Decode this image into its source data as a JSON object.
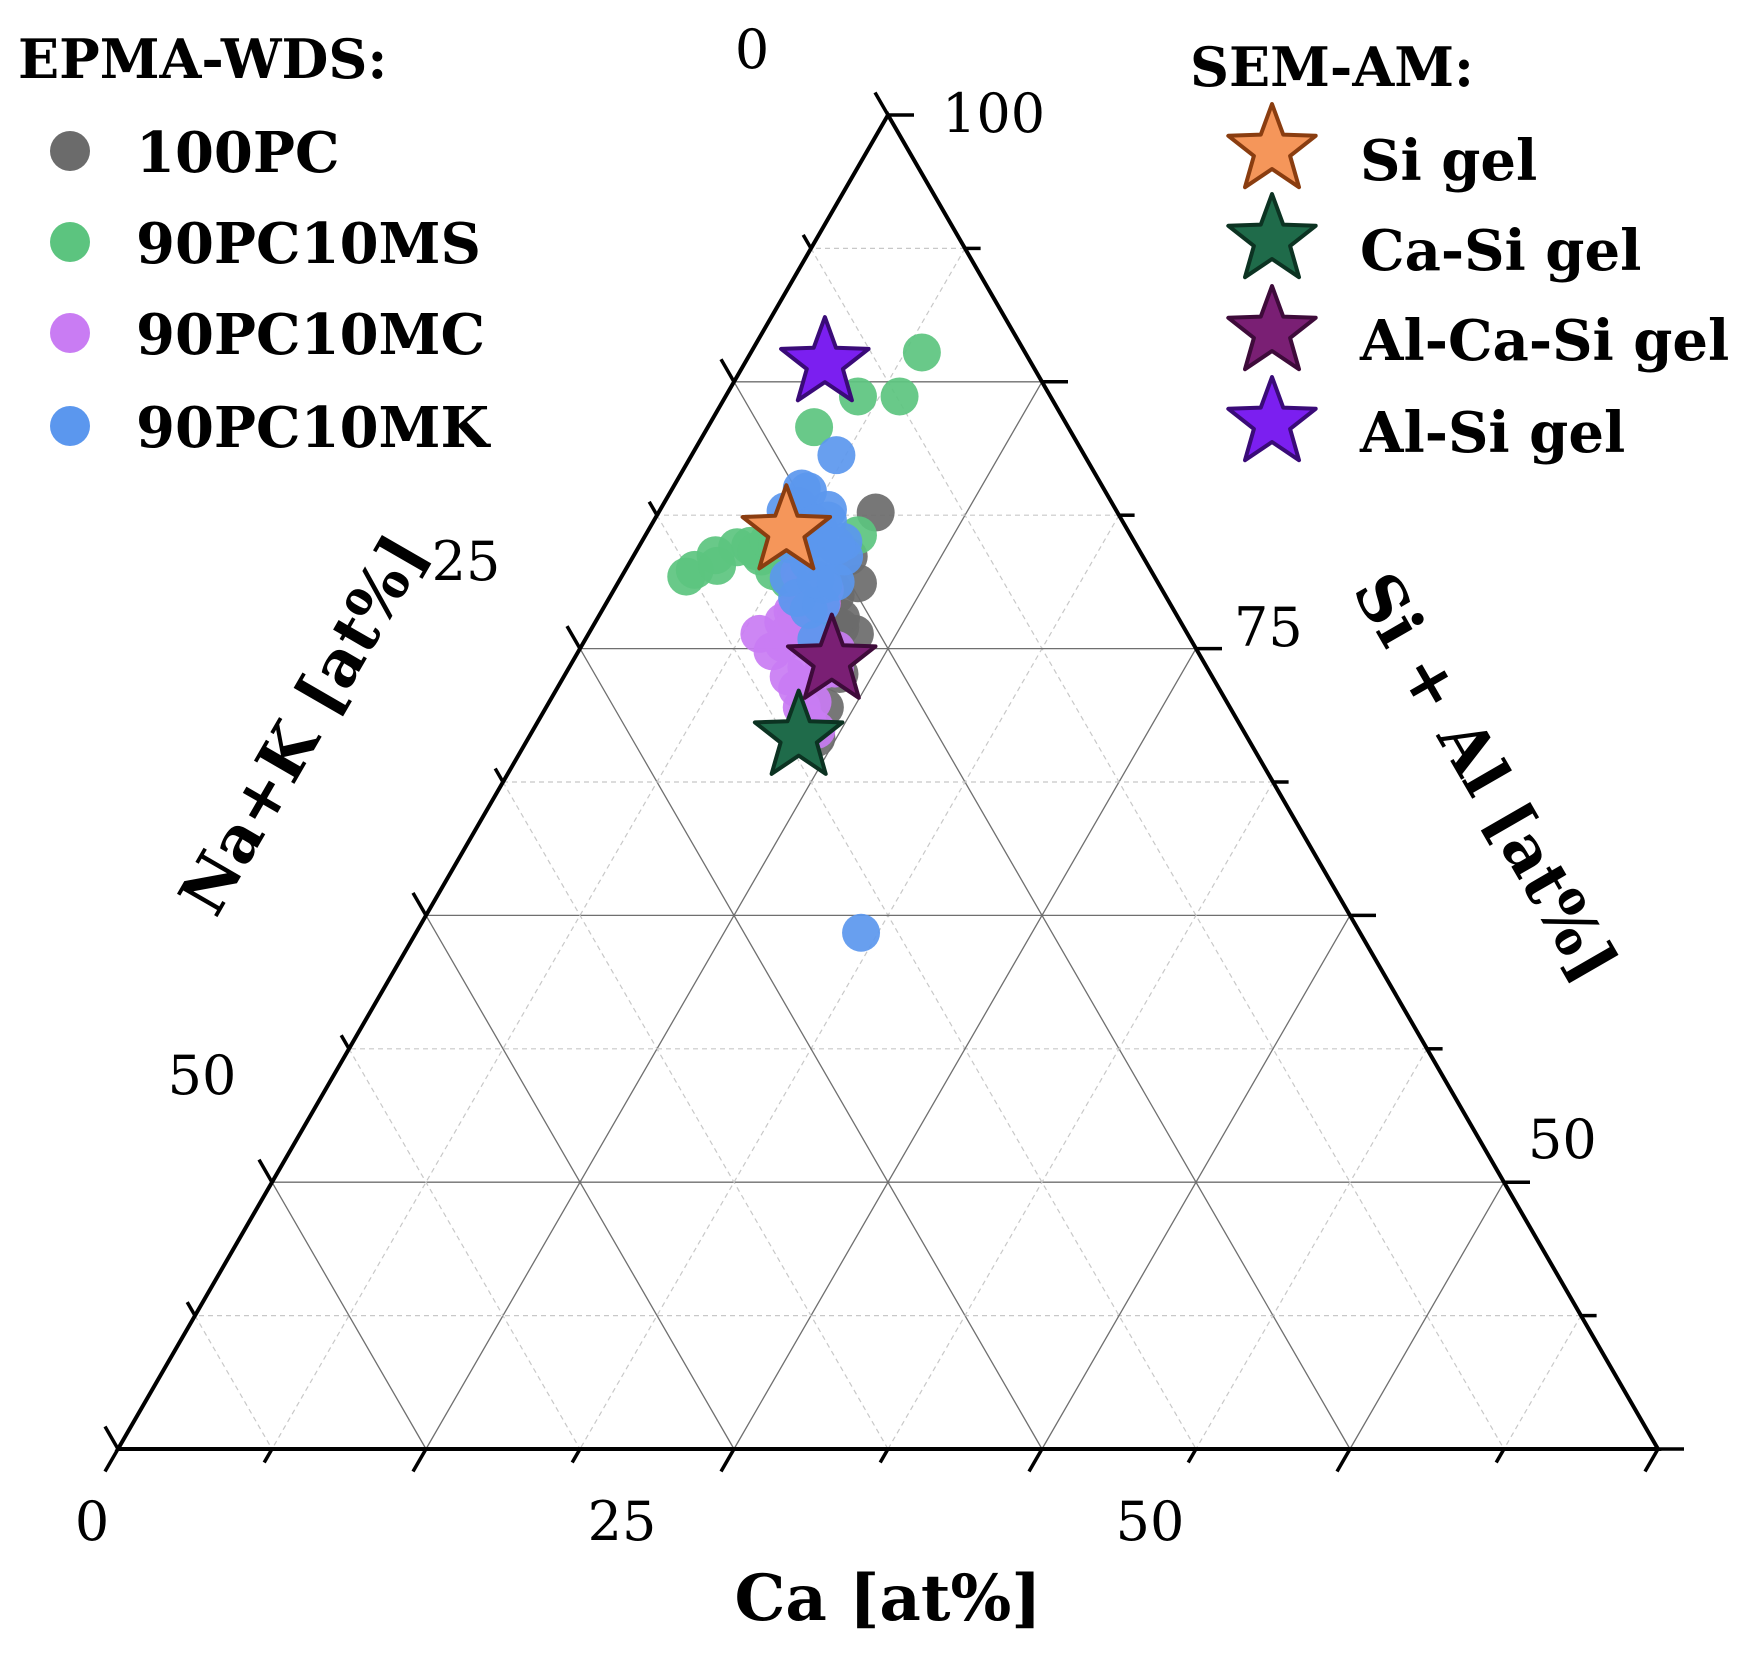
{
  "chart_data": {
    "type": "ternary-scatter",
    "axes": {
      "bottom": {
        "label": "Ca [at%]",
        "ticks": [
          0,
          25,
          50
        ],
        "range": [
          0,
          100
        ]
      },
      "left": {
        "label": "Na+K [at%]",
        "ticks": [
          0,
          25,
          50
        ],
        "range": [
          0,
          100
        ]
      },
      "right": {
        "label": "Si + Al [at%]",
        "ticks": [
          50,
          75,
          100
        ],
        "range": [
          0,
          100
        ]
      }
    },
    "legends": [
      {
        "title": "EPMA-WDS:",
        "entries": [
          {
            "label": "100PC",
            "color": "#6b6b6b",
            "marker": "circle"
          },
          {
            "label": "90PC10MS",
            "color": "#5cc47f",
            "marker": "circle"
          },
          {
            "label": "90PC10MC",
            "color": "#c97cf3",
            "marker": "circle"
          },
          {
            "label": "90PC10MK",
            "color": "#5b97ee",
            "marker": "circle"
          }
        ]
      },
      {
        "title": "SEM-AM:",
        "entries": [
          {
            "label": "Si gel",
            "color": "#f5965a",
            "stroke": "#8a3d10",
            "marker": "star"
          },
          {
            "label": "Ca-Si gel",
            "color": "#1f6b4a",
            "stroke": "#0c3322",
            "marker": "star"
          },
          {
            "label": "Al-Ca-Si gel",
            "color": "#7a1f74",
            "stroke": "#3e0b3a",
            "marker": "star"
          },
          {
            "label": "Al-Si gel",
            "color": "#7b1ff0",
            "stroke": "#3a0b78",
            "marker": "star"
          }
        ]
      }
    ],
    "series": [
      {
        "name": "100PC",
        "points": [
          [
            14.1,
            15.7
          ],
          [
            14.0,
            19.1
          ],
          [
            15.6,
            19.5
          ],
          [
            14.6,
            21.4
          ],
          [
            15.8,
            21.9
          ],
          [
            16.1,
            22.3
          ],
          [
            17.3,
            21.6
          ],
          [
            15.6,
            22.6
          ],
          [
            17.8,
            24.1
          ],
          [
            18.1,
            26.3
          ],
          [
            18.7,
            28.0
          ],
          [
            13.9,
            21.4
          ],
          [
            13.3,
            23.1
          ],
          [
            16.7,
            23.4
          ]
        ]
      },
      {
        "name": "90PC10MS",
        "points": [
          [
            11.1,
            6.7
          ],
          [
            11.3,
            9.8
          ],
          [
            13.8,
            17.7
          ],
          [
            12.8,
            22.8
          ],
          [
            10.9,
            21.0
          ],
          [
            10.1,
            23.2
          ],
          [
            11.0,
            23.9
          ],
          [
            9.7,
            24.5
          ],
          [
            8.3,
            24.8
          ],
          [
            7.2,
            25.1
          ],
          [
            6.4,
            26.0
          ],
          [
            5.3,
            27.7
          ],
          [
            4.5,
            29.6
          ],
          [
            4.2,
            30.4
          ],
          [
            5.8,
            28.0
          ],
          [
            7.8,
            24.9
          ],
          [
            8.2,
            23.7
          ],
          [
            8.9,
            23.3
          ],
          [
            12.8,
            24.8
          ],
          [
            14.6,
            24.9
          ],
          [
            14.2,
            24.0
          ],
          [
            8.6,
            12.5
          ],
          [
            6.9,
            16.5
          ],
          [
            11.3,
            23.6
          ]
        ]
      },
      {
        "name": "90PC10MC",
        "points": [
          [
            11.1,
            27.8
          ],
          [
            12.6,
            27.6
          ],
          [
            14.6,
            27.5
          ],
          [
            15.6,
            27.4
          ],
          [
            17.1,
            26.9
          ],
          [
            18.4,
            27.7
          ],
          [
            17.6,
            28.0
          ],
          [
            13.0,
            26.6
          ],
          [
            12.4,
            24.8
          ],
          [
            14.3,
            24.7
          ],
          [
            16.6,
            25.0
          ],
          [
            15.5,
            24.2
          ],
          [
            12.2,
            25.8
          ],
          [
            17.3,
            24.2
          ],
          [
            16.7,
            23.4
          ],
          [
            14.0,
            22.6
          ],
          [
            11.9,
            23.0
          ],
          [
            15.4,
            26.0
          ],
          [
            16.6,
            27.8
          ],
          [
            13.7,
            21.9
          ],
          [
            11.4,
            22.9
          ],
          [
            12.9,
            26.0
          ]
        ]
      },
      {
        "name": "90PC10MK",
        "points": [
          [
            9.4,
            16.1
          ],
          [
            10.9,
            18.7
          ],
          [
            8.9,
            19.3
          ],
          [
            11.0,
            20.0
          ],
          [
            13.1,
            18.9
          ],
          [
            10.3,
            20.2
          ],
          [
            11.6,
            21.9
          ],
          [
            8.8,
            20.5
          ],
          [
            8.2,
            21.5
          ],
          [
            9.8,
            22.4
          ],
          [
            10.9,
            23.8
          ],
          [
            12.2,
            24.0
          ],
          [
            13.4,
            23.7
          ],
          [
            15.0,
            24.3
          ],
          [
            14.0,
            22.7
          ],
          [
            13.4,
            21.8
          ],
          [
            12.7,
            22.1
          ],
          [
            12.2,
            20.5
          ],
          [
            14.1,
            20.9
          ],
          [
            10.5,
            21.4
          ],
          [
            9.2,
            21.6
          ],
          [
            8.4,
            19.6
          ],
          [
            11.3,
            19.1
          ],
          [
            13.7,
            19.4
          ],
          [
            12.8,
            19.5
          ],
          [
            28.9,
            32.4
          ]
        ]
      }
    ],
    "stars": [
      {
        "name": "Si gel",
        "ca": 9.0,
        "nak": 22.2
      },
      {
        "name": "Ca-Si gel",
        "ca": 17.5,
        "nak": 29.1
      },
      {
        "name": "Al-Ca-Si gel",
        "ca": 16.8,
        "nak": 24.1
      },
      {
        "name": "Al-Si gel",
        "ca": 5.2,
        "nak": 13.4
      }
    ]
  }
}
